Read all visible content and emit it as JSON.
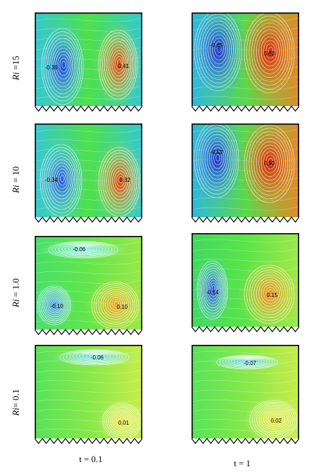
{
  "row_labels": [
    {
      "symbol": "Ri",
      "text": " =15"
    },
    {
      "symbol": "Ri",
      "text": " = 10"
    },
    {
      "symbol": "Ri",
      "text": " = 1.0"
    },
    {
      "symbol": "Ri",
      "text": "= 0.1"
    }
  ],
  "column_labels": [
    "t = 0.1",
    "t = 1"
  ],
  "panels": [
    {
      "row": 0,
      "col": 0,
      "left_value": "-0.39",
      "right_value": "0.41"
    },
    {
      "row": 0,
      "col": 1,
      "left_value": "-0.65",
      "right_value": "0.60"
    },
    {
      "row": 1,
      "col": 0,
      "left_value": "-0.34",
      "right_value": "0.32"
    },
    {
      "row": 1,
      "col": 1,
      "left_value": "-0.52",
      "right_value": "0.50"
    },
    {
      "row": 2,
      "col": 0,
      "top_value": "-0.06",
      "left_value": "-0.10",
      "right_value": "0.10"
    },
    {
      "row": 2,
      "col": 1,
      "left_value": "-0.14",
      "right_value": "0.15"
    },
    {
      "row": 3,
      "col": 0,
      "top_value": "-0.06",
      "right_value": "0.01"
    },
    {
      "row": 3,
      "col": 1,
      "top_value": "-0.07",
      "right_value": "0.02"
    }
  ],
  "colors": {
    "negative_core": "#1f3fd8",
    "background": "#2fd84a",
    "positive_core": "#e03a0a",
    "frame": "#000000"
  }
}
